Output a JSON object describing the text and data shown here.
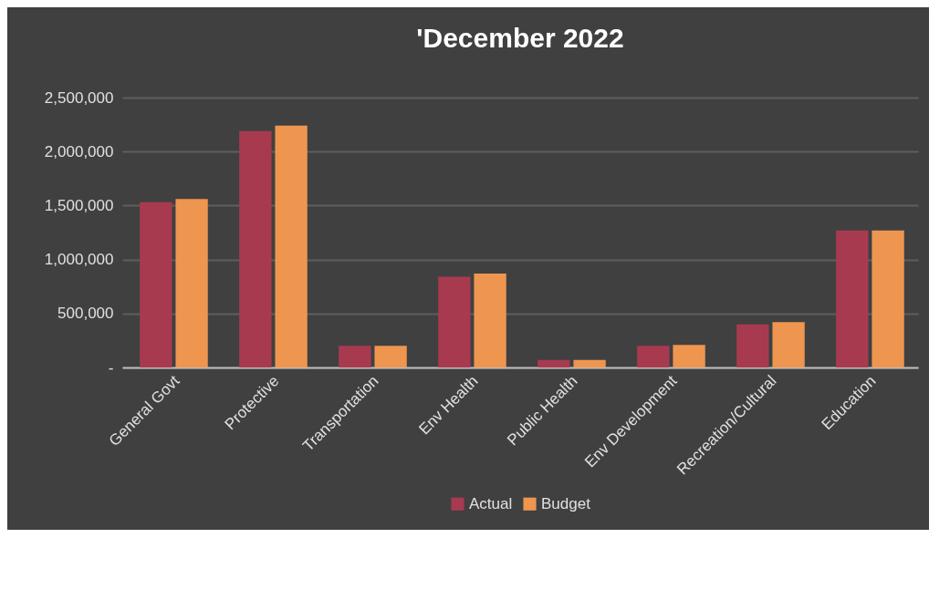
{
  "chart_data": {
    "type": "bar",
    "title": "'December 2022",
    "categories": [
      "General Govt",
      "Protective",
      "Transportation",
      "Env Health",
      "Public Health",
      "Env Development",
      "Recreation/Cultural",
      "Education"
    ],
    "series": [
      {
        "name": "Actual",
        "color": "#a83a50",
        "values": [
          1530000,
          2190000,
          200000,
          840000,
          70000,
          200000,
          400000,
          1270000
        ]
      },
      {
        "name": "Budget",
        "color": "#ee9650",
        "values": [
          1560000,
          2240000,
          200000,
          870000,
          70000,
          210000,
          420000,
          1270000
        ]
      }
    ],
    "ylim": [
      0,
      2500000
    ],
    "yticks": [
      {
        "value": 0,
        "label": "-"
      },
      {
        "value": 500000,
        "label": "500,000"
      },
      {
        "value": 1000000,
        "label": "1,000,000"
      },
      {
        "value": 1500000,
        "label": "1,500,000"
      },
      {
        "value": 2000000,
        "label": "2,000,000"
      },
      {
        "value": 2500000,
        "label": "2,500,000"
      }
    ],
    "grid": "y",
    "legend": "bottom"
  }
}
